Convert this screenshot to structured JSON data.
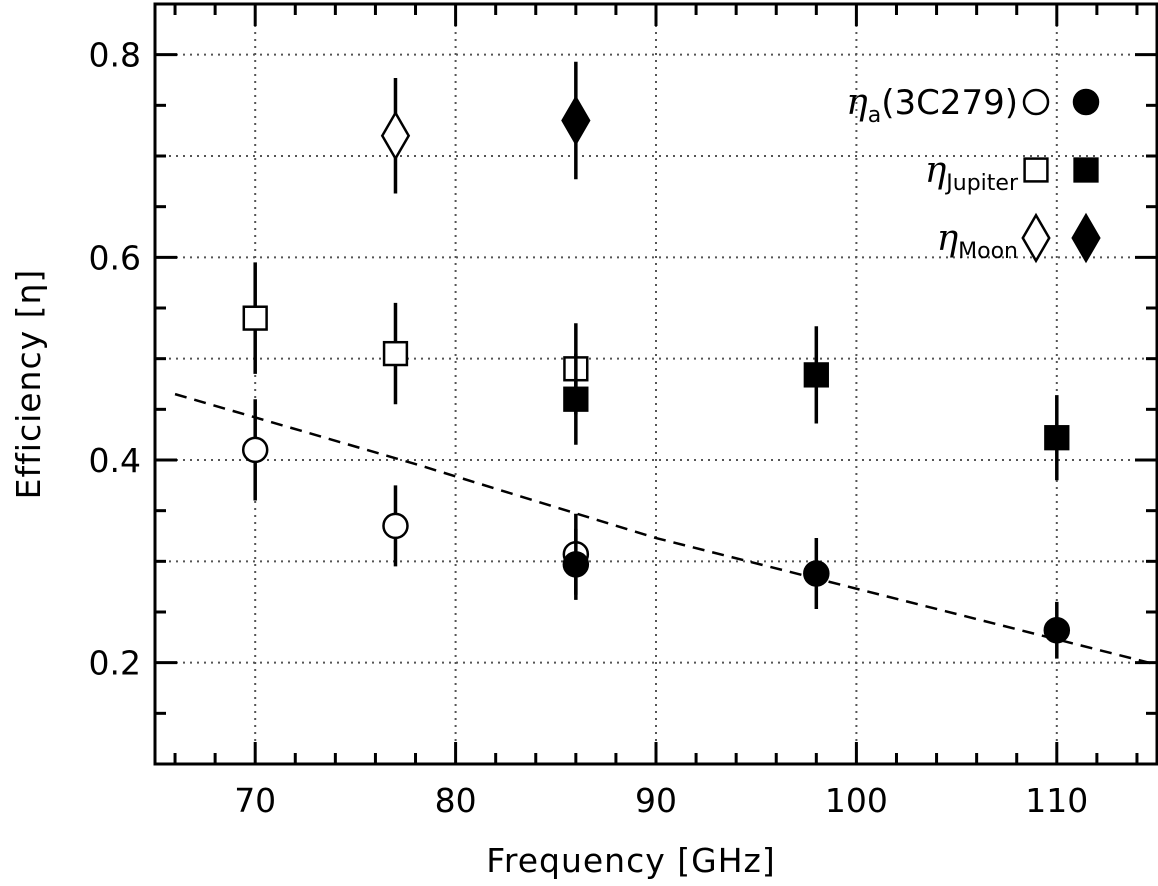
{
  "chart_data": {
    "type": "scatter",
    "title": "",
    "xlabel": "Frequency [GHz]",
    "ylabel": "Efficiency [η]",
    "xlim": [
      65,
      115
    ],
    "ylim": [
      0.1,
      0.85
    ],
    "x_ticks": [
      70,
      80,
      90,
      100,
      110
    ],
    "x_tick_labels": [
      "70",
      "80",
      "90",
      "100",
      "110"
    ],
    "y_ticks": [
      0.2,
      0.4,
      0.6,
      0.8
    ],
    "y_tick_labels": [
      "0.2",
      "0.4",
      "0.6",
      "0.8"
    ],
    "grid": true,
    "legend_position": "top-right",
    "series": [
      {
        "name": "η_a(3C279)",
        "legend_symbol": "η",
        "legend_subscript": "a",
        "legend_suffix": "(3C279)",
        "marker": "circle",
        "points": [
          {
            "x": 70,
            "y": 0.41,
            "err": 0.05,
            "filled": false
          },
          {
            "x": 77,
            "y": 0.335,
            "err": 0.04,
            "filled": false
          },
          {
            "x": 86,
            "y": 0.307,
            "err": 0.04,
            "filled": false
          },
          {
            "x": 86,
            "y": 0.297,
            "err": 0.035,
            "filled": true
          },
          {
            "x": 98,
            "y": 0.288,
            "err": 0.035,
            "filled": true
          },
          {
            "x": 110,
            "y": 0.232,
            "err": 0.028,
            "filled": true
          }
        ]
      },
      {
        "name": "η_Jupiter",
        "legend_symbol": "η",
        "legend_subscript": "Jupiter",
        "legend_suffix": "",
        "marker": "square",
        "points": [
          {
            "x": 70,
            "y": 0.54,
            "err": 0.055,
            "filled": false
          },
          {
            "x": 77,
            "y": 0.505,
            "err": 0.05,
            "filled": false
          },
          {
            "x": 86,
            "y": 0.49,
            "err": 0.045,
            "filled": false
          },
          {
            "x": 86,
            "y": 0.46,
            "err": 0.045,
            "filled": true
          },
          {
            "x": 98,
            "y": 0.484,
            "err": 0.048,
            "filled": true
          },
          {
            "x": 110,
            "y": 0.422,
            "err": 0.042,
            "filled": true
          }
        ]
      },
      {
        "name": "η_Moon",
        "legend_symbol": "η",
        "legend_subscript": "Moon",
        "legend_suffix": "",
        "marker": "diamond",
        "points": [
          {
            "x": 77,
            "y": 0.72,
            "err": 0.057,
            "filled": false
          },
          {
            "x": 86,
            "y": 0.735,
            "err": 0.058,
            "filled": true
          }
        ]
      }
    ],
    "fit_line": {
      "style": "dashed",
      "points": [
        [
          66,
          0.465
        ],
        [
          78,
          0.396
        ],
        [
          90,
          0.323
        ],
        [
          102,
          0.263
        ],
        [
          115,
          0.198
        ]
      ]
    }
  }
}
